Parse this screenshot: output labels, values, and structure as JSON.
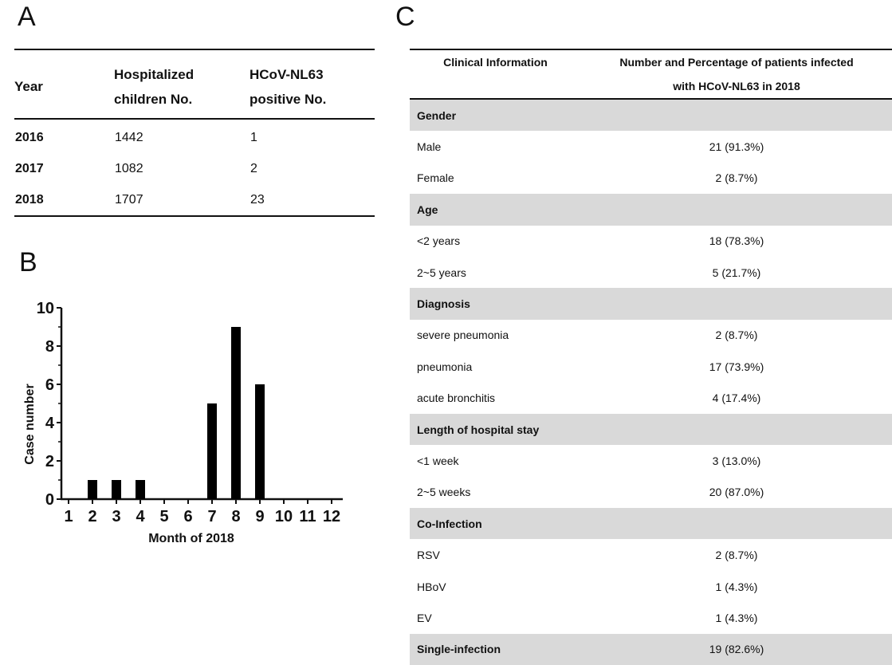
{
  "panels": {
    "a": "A",
    "b": "B",
    "c": "C"
  },
  "tableA": {
    "headers": {
      "year": "Year",
      "hosp_line1": "Hospitalized",
      "hosp_line2": "children No.",
      "pos_line1": "HCoV-NL63",
      "pos_line2": "positive No."
    },
    "rows": [
      {
        "year": "2016",
        "hospitalized": "1442",
        "positive": "1"
      },
      {
        "year": "2017",
        "hospitalized": "1082",
        "positive": "2"
      },
      {
        "year": "2018",
        "hospitalized": "1707",
        "positive": "23"
      }
    ]
  },
  "chart_data": {
    "type": "bar",
    "categories": [
      "1",
      "2",
      "3",
      "4",
      "5",
      "6",
      "7",
      "8",
      "9",
      "10",
      "11",
      "12"
    ],
    "values": [
      0,
      1,
      1,
      1,
      0,
      0,
      5,
      9,
      6,
      0,
      0,
      0
    ],
    "xlabel": "Month of 2018",
    "ylabel": "Case number",
    "ylim": [
      0,
      10
    ],
    "yticks": [
      "0",
      "2",
      "4",
      "6",
      "8",
      "10"
    ],
    "bar_color": "#000000",
    "grid": false
  },
  "tableC": {
    "headers": {
      "col1": "Clinical Information",
      "col2_line1": "Number and Percentage of patients infected",
      "col2_line2": "with HCoV-NL63 in 2018"
    },
    "sections": {
      "gender": "Gender",
      "age": "Age",
      "diagnosis": "Diagnosis",
      "stay": "Length of hospital stay",
      "coinf": "Co-Infection",
      "single_label": "Single-infection",
      "single_value": "19 (82.6%)"
    },
    "rows": {
      "male": {
        "label": "Male",
        "value": "21 (91.3%)"
      },
      "female": {
        "label": "Female",
        "value": "2 (8.7%)"
      },
      "age1": {
        "label": "<2 years",
        "value": "18 (78.3%)"
      },
      "age2": {
        "label": "2~5 years",
        "value": "5 (21.7%)"
      },
      "dx1": {
        "label": "severe pneumonia",
        "value": "2 (8.7%)"
      },
      "dx2": {
        "label": "pneumonia",
        "value": "17 (73.9%)"
      },
      "dx3": {
        "label": "acute bronchitis",
        "value": "4 (17.4%)"
      },
      "stay1": {
        "label": "<1 week",
        "value": "3 (13.0%)"
      },
      "stay2": {
        "label": "2~5 weeks",
        "value": "20 (87.0%)"
      },
      "rsv": {
        "label": "RSV",
        "value": "2 (8.7%)"
      },
      "hbov": {
        "label": "HBoV",
        "value": "1 (4.3%)"
      },
      "ev": {
        "label": "EV",
        "value": "1 (4.3%)"
      }
    },
    "section_color": "#d9d9d9"
  }
}
